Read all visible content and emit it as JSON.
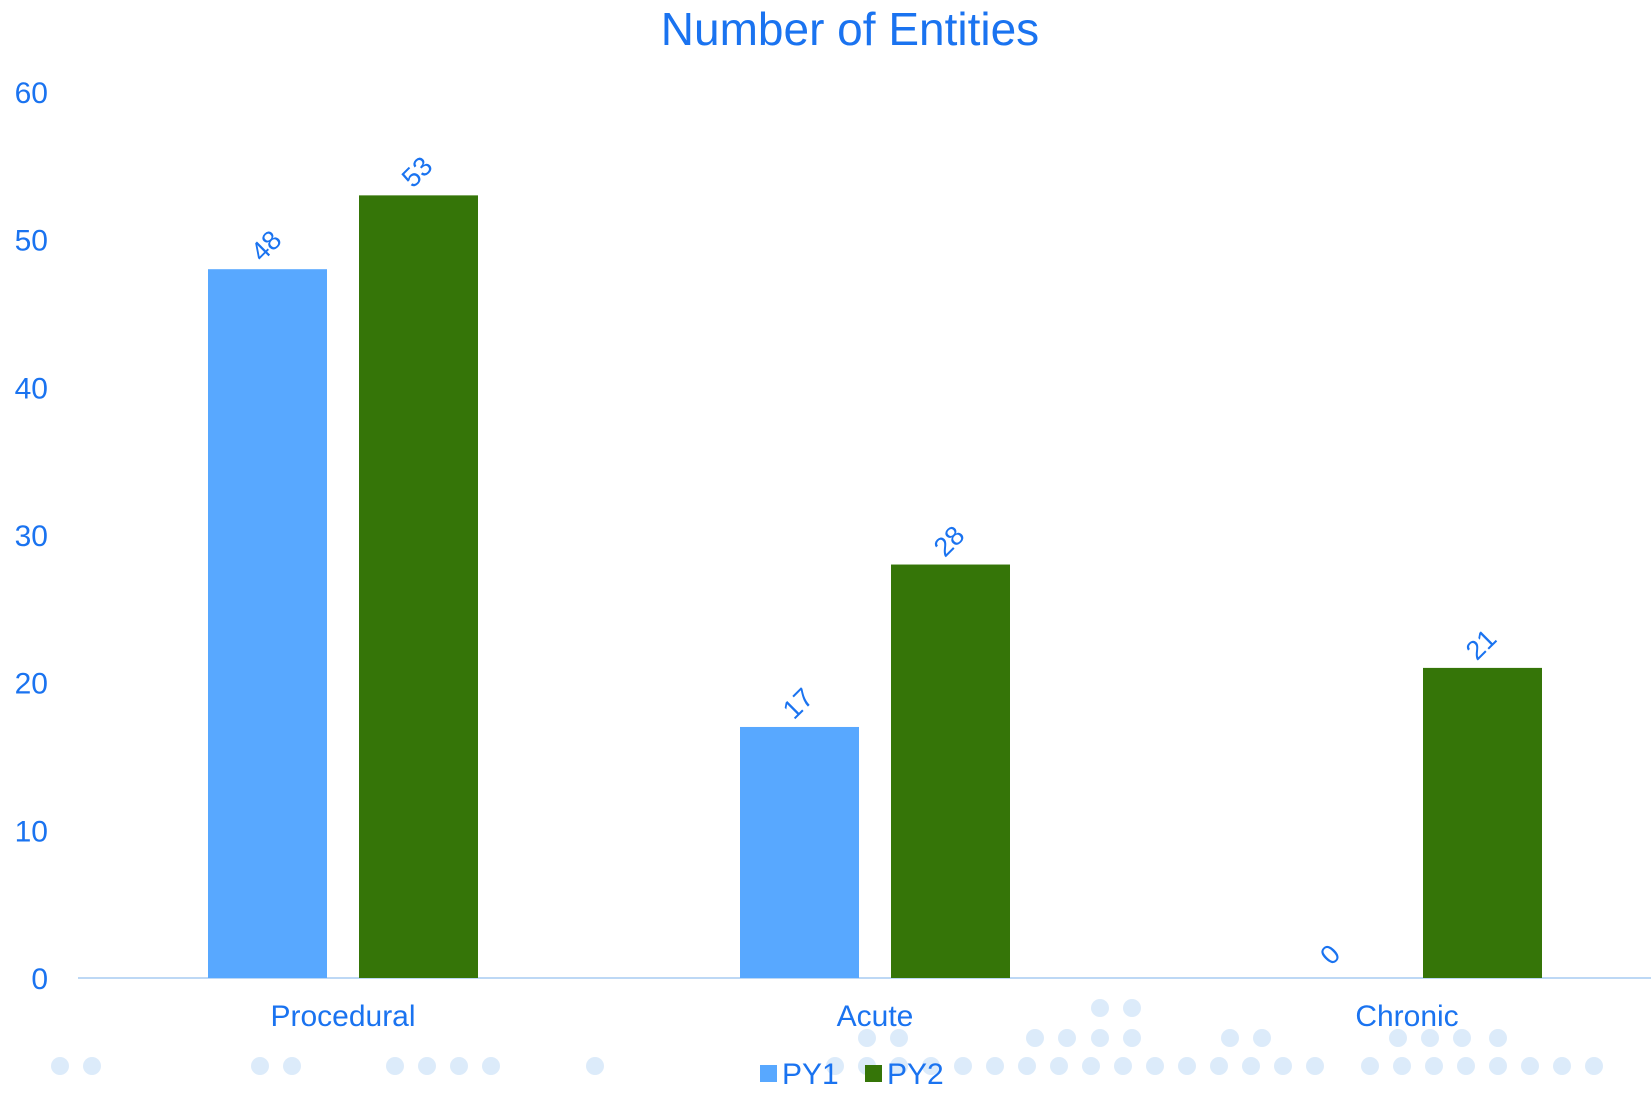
{
  "chart_data": {
    "type": "bar",
    "title": "Number of Entities",
    "categories": [
      "Procedural",
      "Acute",
      "Chronic"
    ],
    "series": [
      {
        "name": "PY1",
        "values": [
          48,
          17,
          0
        ],
        "color": "#58A8FF"
      },
      {
        "name": "PY2",
        "values": [
          53,
          28,
          21
        ],
        "color": "#357508"
      }
    ],
    "ylim": [
      0,
      60
    ],
    "yticks": [
      0,
      10,
      20,
      30,
      40,
      50,
      60
    ],
    "xlabel": "",
    "ylabel": "",
    "grid": false,
    "legend_position": "bottom",
    "data_labels": true,
    "text_color": "#1A73F0",
    "axis_color": "#BDD8F5",
    "dot_pattern_color": "#DCEBFA"
  }
}
